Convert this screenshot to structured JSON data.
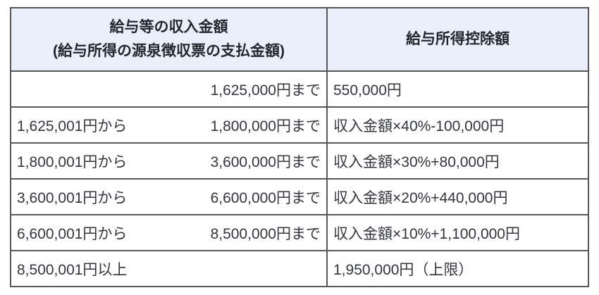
{
  "table": {
    "header": {
      "income_line1": "給与等の収入金額",
      "income_line2": "(給与所得の源泉徴収票の支払金額)",
      "deduction": "給与所得控除額"
    },
    "rows": [
      {
        "from": "",
        "to": "1,625,000円まで",
        "deduction": "550,000円"
      },
      {
        "from": "1,625,001円から",
        "to": "1,800,000円まで",
        "deduction": "収入金額×40%-100,000円"
      },
      {
        "from": "1,800,001円から",
        "to": "3,600,000円まで",
        "deduction": "収入金額×30%+80,000円"
      },
      {
        "from": "3,600,001円から",
        "to": "6,600,000円まで",
        "deduction": "収入金額×20%+440,000円"
      },
      {
        "from": "6,600,001円から",
        "to": "8,500,000円まで",
        "deduction": "収入金額×10%+1,100,000円"
      },
      {
        "from": "8,500,001円以上",
        "to": "",
        "deduction": "1,950,000円（上限）"
      }
    ],
    "colors": {
      "header_bg": "#eaf0fb",
      "border": "#55575b",
      "header_text": "#24262e",
      "body_text": "#33363d"
    }
  }
}
